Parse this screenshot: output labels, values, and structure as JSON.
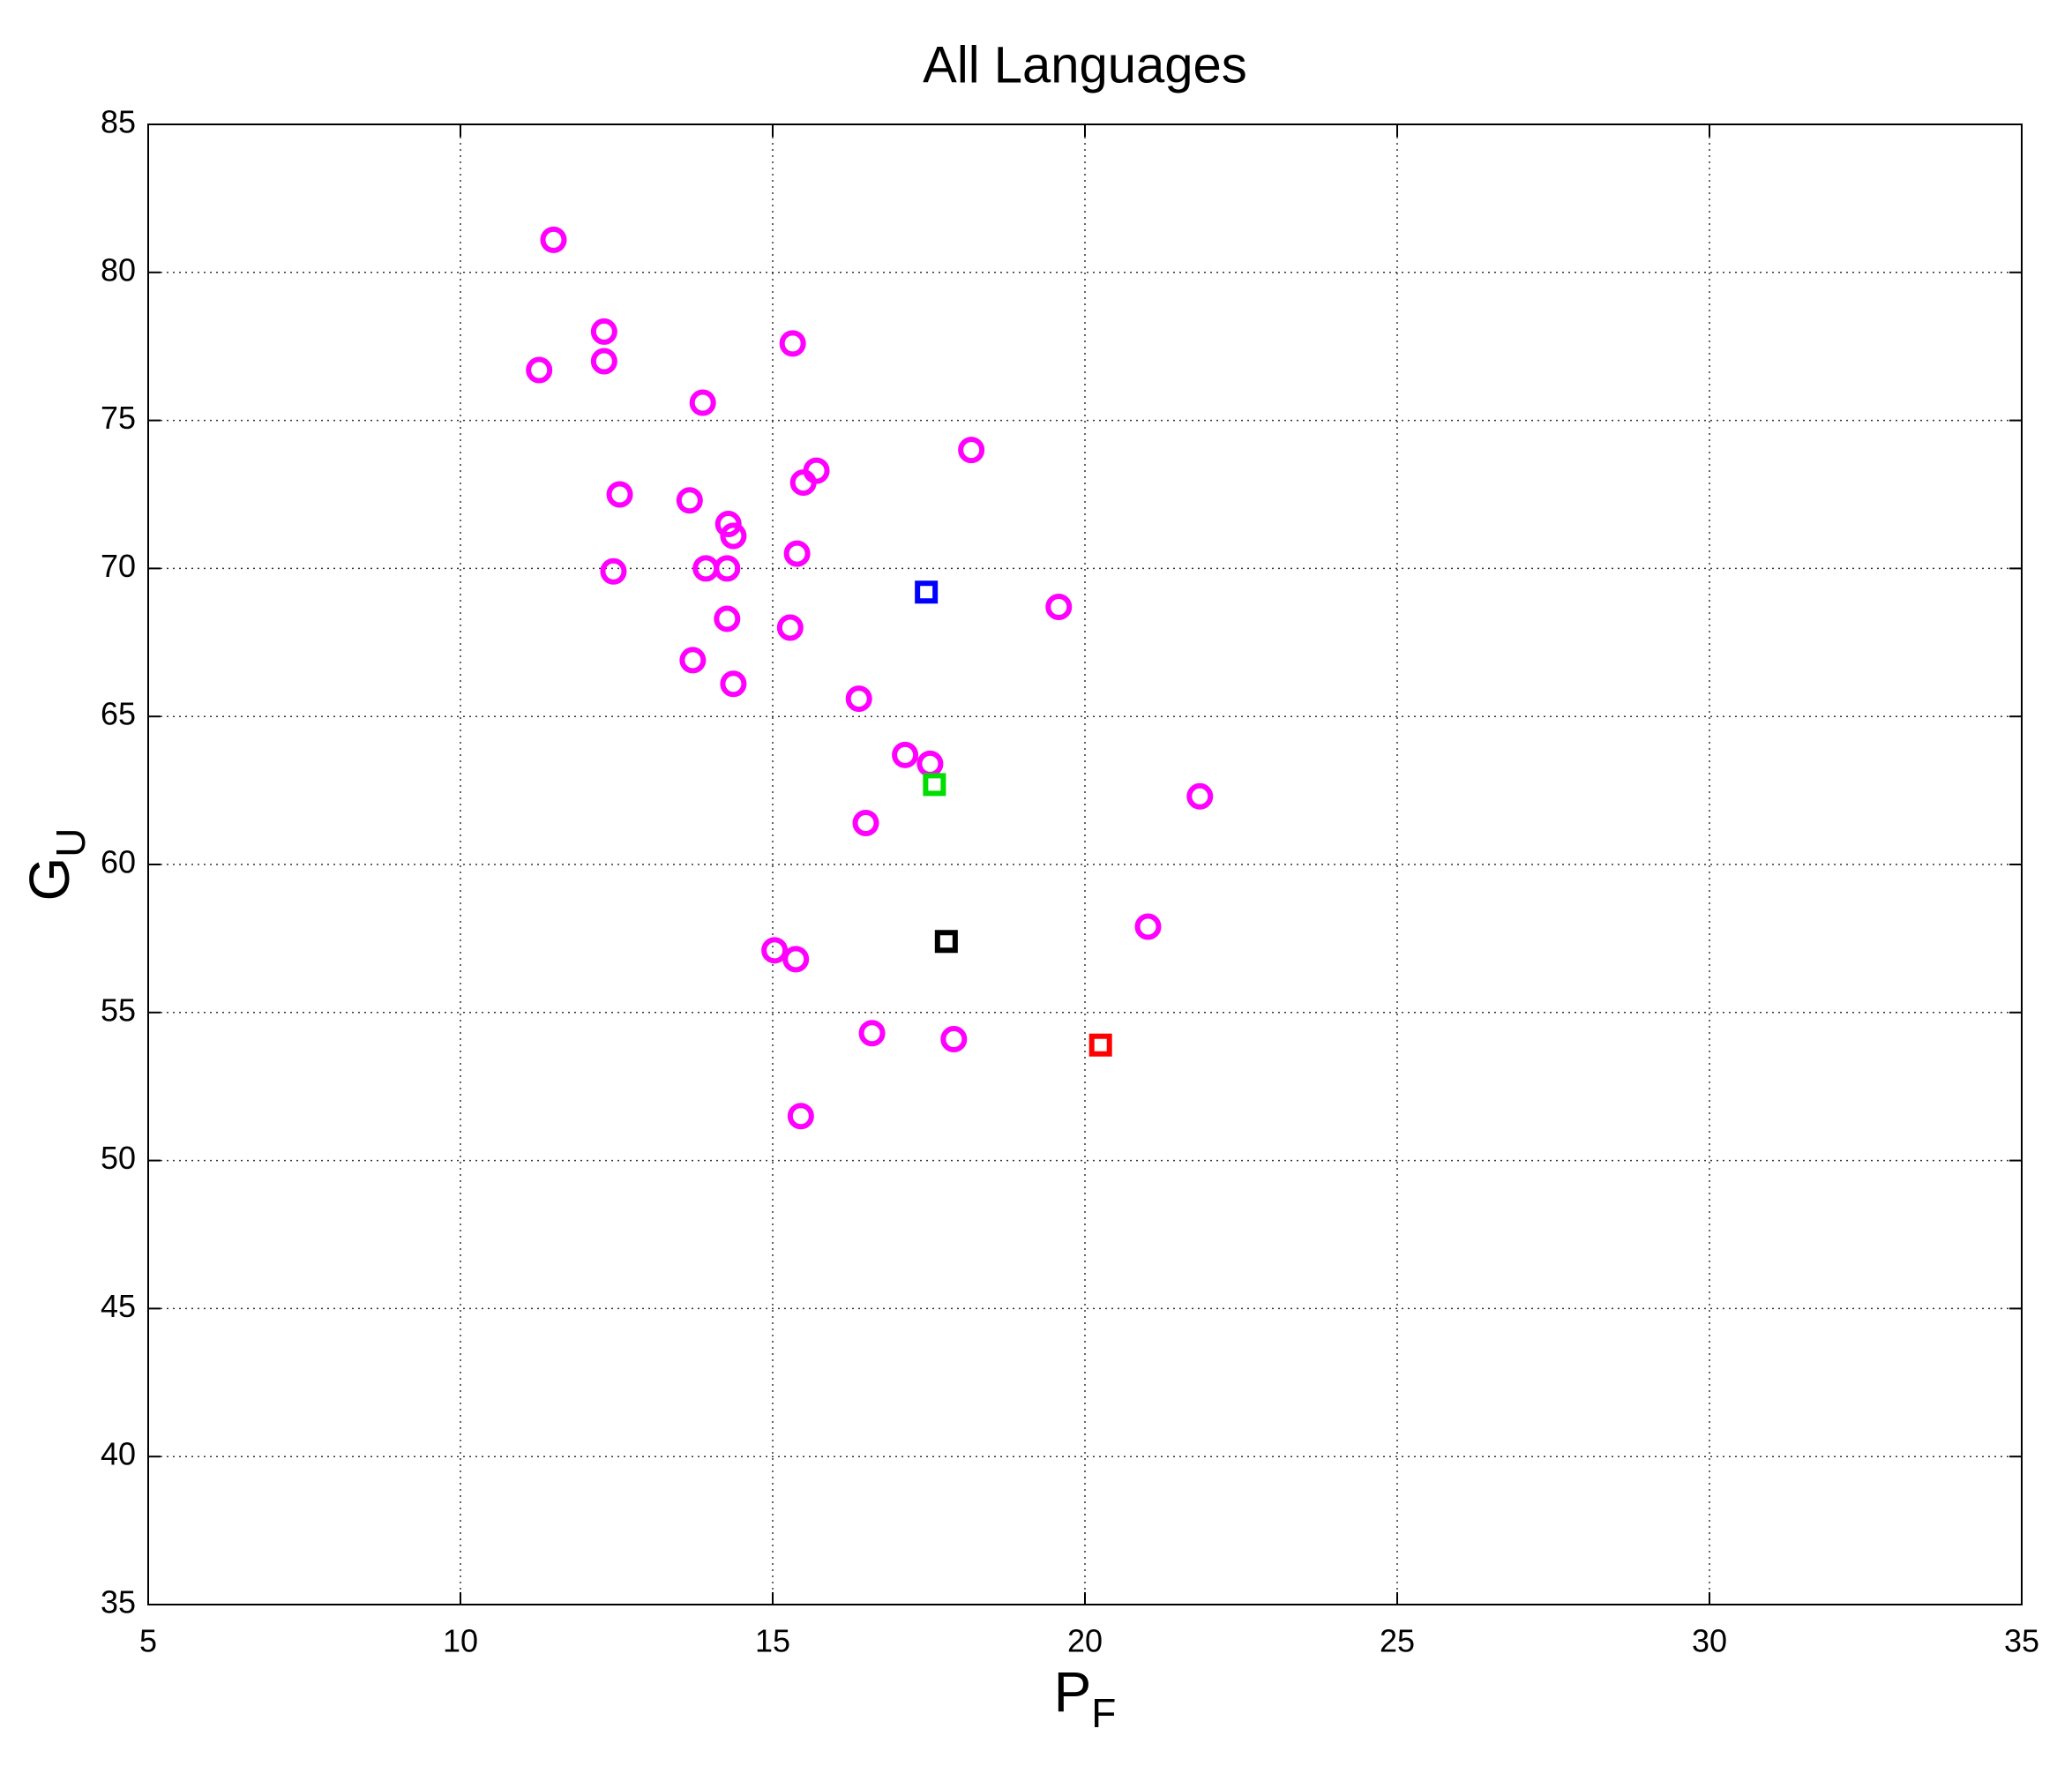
{
  "chart_data": {
    "type": "scatter",
    "title": "All Languages",
    "x_label": {
      "text": "P",
      "subscript": "F"
    },
    "y_label": {
      "text": "G",
      "subscript": "U"
    },
    "xlim": [
      5,
      35
    ],
    "xticks": [
      5,
      10,
      15,
      20,
      25,
      30,
      35
    ],
    "ylim": [
      35,
      85
    ],
    "yticks": [
      35,
      40,
      45,
      50,
      55,
      60,
      65,
      70,
      75,
      80,
      85
    ],
    "grid": true,
    "series": [
      {
        "color": "#ff00ff",
        "marker": "circle",
        "x": [
          11.49,
          12.3,
          12.3,
          11.26,
          15.32,
          13.88,
          18.18,
          15.7,
          15.49,
          12.55,
          13.67,
          14.29,
          14.37,
          15.39,
          13.93,
          14.27,
          12.45,
          19.58,
          14.27,
          15.28,
          13.72,
          14.37,
          16.38,
          17.12,
          17.52,
          21.84,
          16.49,
          21.01,
          15.03,
          15.37,
          16.59,
          17.9,
          15.45
        ],
        "y": [
          81.1,
          78.0,
          77.0,
          76.7,
          77.6,
          75.6,
          74.0,
          73.3,
          72.9,
          72.5,
          72.3,
          71.5,
          71.1,
          70.5,
          70.0,
          70.0,
          69.9,
          68.7,
          68.3,
          68.0,
          66.9,
          66.1,
          65.6,
          63.7,
          63.4,
          62.3,
          61.4,
          57.9,
          57.1,
          56.8,
          54.3,
          54.1,
          51.5
        ]
      },
      {
        "color": "#0000ff",
        "marker": "square",
        "x": [
          17.46
        ],
        "y": [
          69.2
        ]
      },
      {
        "color": "#00dd00",
        "marker": "square",
        "x": [
          17.59
        ],
        "y": [
          62.7
        ]
      },
      {
        "color": "#000000",
        "marker": "square",
        "x": [
          17.78
        ],
        "y": [
          57.4
        ]
      },
      {
        "color": "#ff0000",
        "marker": "square",
        "x": [
          20.25
        ],
        "y": [
          53.9
        ]
      }
    ]
  }
}
